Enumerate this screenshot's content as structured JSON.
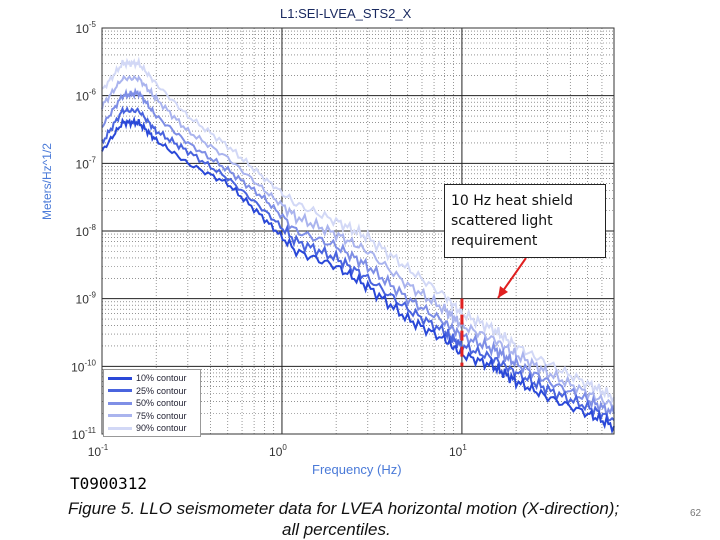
{
  "chart_data": {
    "type": "line",
    "title": "L1:SEI-LVEA_STS2_X",
    "xlabel": "Frequency (Hz)",
    "ylabel": "Meters/Hz^1/2",
    "xscale": "log",
    "yscale": "log",
    "xlim": [
      0.1,
      70
    ],
    "ylim": [
      1e-11,
      1e-05
    ],
    "x_ticks": [
      {
        "value": 0.1,
        "base": "10",
        "exp": "-1"
      },
      {
        "value": 1,
        "base": "10",
        "exp": "0"
      },
      {
        "value": 10,
        "base": "10",
        "exp": "1"
      }
    ],
    "y_ticks": [
      {
        "value": 1e-05,
        "base": "10",
        "exp": "-5"
      },
      {
        "value": 1e-06,
        "base": "10",
        "exp": "-6"
      },
      {
        "value": 1e-07,
        "base": "10",
        "exp": "-7"
      },
      {
        "value": 1e-08,
        "base": "10",
        "exp": "-8"
      },
      {
        "value": 1e-09,
        "base": "10",
        "exp": "-9"
      },
      {
        "value": 1e-10,
        "base": "10",
        "exp": "-10"
      },
      {
        "value": 1e-11,
        "base": "10",
        "exp": "-11"
      }
    ],
    "grid": true,
    "legend_position": "bottom-left",
    "x": [
      0.1,
      0.13,
      0.16,
      0.2,
      0.3,
      0.5,
      0.8,
      1.2,
      2,
      3,
      5,
      8,
      10,
      15,
      20,
      30,
      50,
      70
    ],
    "series": [
      {
        "name": "10% contour",
        "color": "#2a48d8",
        "values": [
          1.5e-07,
          4e-07,
          4e-07,
          2.2e-07,
          1e-07,
          5e-08,
          1.5e-08,
          5e-09,
          3e-09,
          1.5e-09,
          5e-10,
          2.5e-10,
          1.5e-10,
          1e-10,
          6e-11,
          3.5e-11,
          2e-11,
          1.3e-11
        ]
      },
      {
        "name": "25% contour",
        "color": "#4a64de",
        "values": [
          2e-07,
          6e-07,
          6e-07,
          3e-07,
          1.5e-07,
          6e-08,
          2e-08,
          7e-09,
          4e-09,
          2e-09,
          7e-10,
          3.2e-10,
          2e-10,
          1.3e-10,
          8e-11,
          4.5e-11,
          2.5e-11,
          1.6e-11
        ]
      },
      {
        "name": "50% contour",
        "color": "#7f8fe6",
        "values": [
          3.5e-07,
          1e-06,
          1.1e-06,
          5e-07,
          2e-07,
          8e-08,
          3e-08,
          1e-08,
          6e-09,
          3e-09,
          1e-09,
          4.5e-10,
          2.8e-10,
          1.8e-10,
          1.1e-10,
          6e-11,
          3.2e-11,
          2e-11
        ]
      },
      {
        "name": "75% contour",
        "color": "#aab4ee",
        "values": [
          7e-07,
          1.8e-06,
          1.8e-06,
          9e-07,
          3e-07,
          1.2e-07,
          4e-08,
          1.6e-08,
          9e-09,
          5e-09,
          1.6e-09,
          7e-10,
          4e-10,
          2.5e-10,
          1.5e-10,
          8e-11,
          4e-11,
          2.6e-11
        ]
      },
      {
        "name": "90% contour",
        "color": "#d2d8f6",
        "values": [
          1.2e-06,
          3e-06,
          3e-06,
          1.5e-06,
          5e-07,
          1.8e-07,
          6e-08,
          2.5e-08,
          1.4e-08,
          8e-09,
          2.8e-09,
          1.1e-09,
          6e-10,
          3.5e-10,
          2e-10,
          1.1e-10,
          5.5e-11,
          3.5e-11
        ]
      }
    ],
    "annotations": [
      {
        "text": "10 Hz heat shield scattered light requirement",
        "x": 10,
        "y_range": [
          1e-10,
          1e-09
        ],
        "line_color": "#e02020"
      }
    ]
  },
  "doc": {
    "document_id": "T0900312",
    "caption_line1": "Figure 5. LLO seismometer data for LVEA horizontal motion (X-direction);",
    "caption_line2": "all percentiles.",
    "page_number": "62"
  }
}
